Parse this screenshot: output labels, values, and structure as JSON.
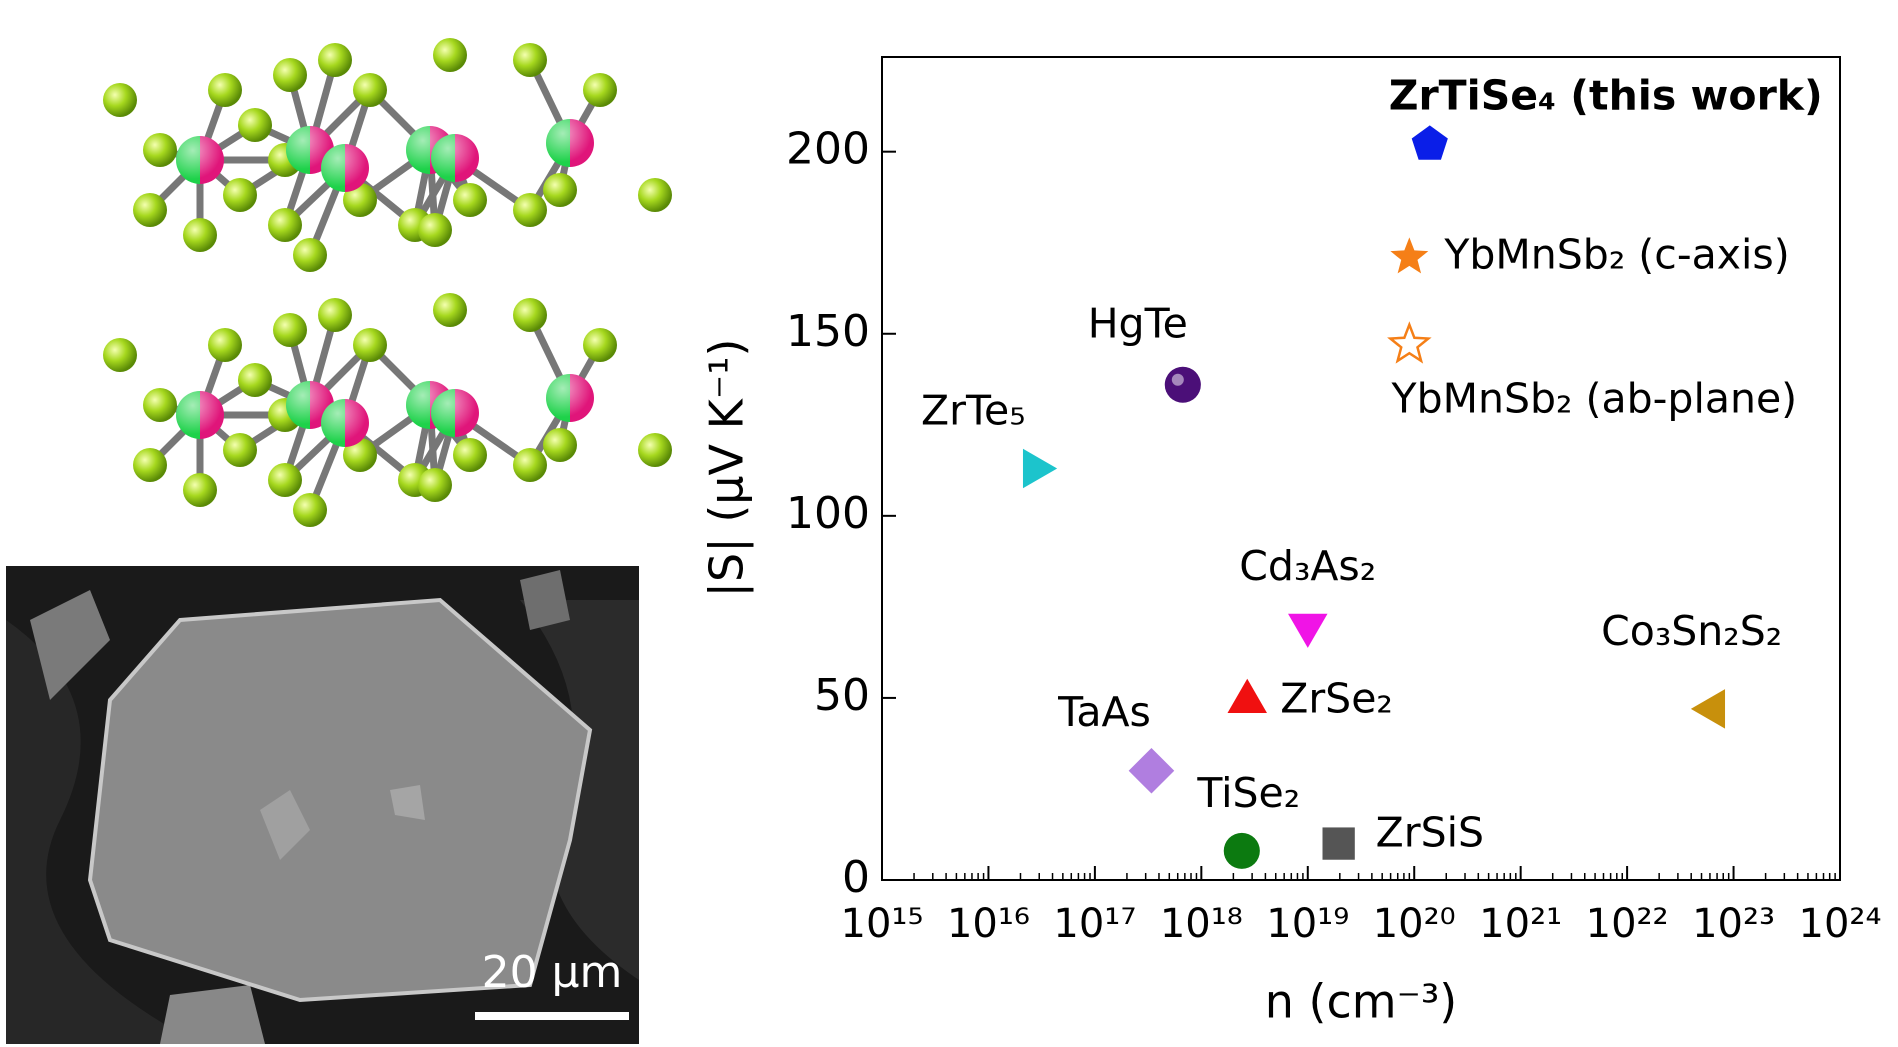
{
  "chart_data": {
    "type": "scatter",
    "xlabel": "n (cm⁻³)",
    "ylabel": "|S| (μV K⁻¹)",
    "xscale": "log",
    "xlim": [
      1000000000000000.0,
      1e+24
    ],
    "xticks": [
      {
        "value": 1000000000000000.0,
        "label": "10¹⁵"
      },
      {
        "value": 1e+16,
        "label": "10¹⁶"
      },
      {
        "value": 1e+17,
        "label": "10¹⁷"
      },
      {
        "value": 1e+18,
        "label": "10¹⁸"
      },
      {
        "value": 1e+19,
        "label": "10¹⁹"
      },
      {
        "value": 1e+20,
        "label": "10²⁰"
      },
      {
        "value": 1e+21,
        "label": "10²¹"
      },
      {
        "value": 1e+22,
        "label": "10²²"
      },
      {
        "value": 1e+23,
        "label": "10²³"
      },
      {
        "value": 1e+24,
        "label": "10²⁴"
      }
    ],
    "ylim": [
      0,
      226
    ],
    "yticks": [
      0,
      50,
      100,
      150,
      200
    ],
    "series": [
      {
        "name": "ZrTiSe₄ (this work)",
        "color": "#0a1ee8",
        "marker": "pentagon",
        "x": [
          1.4e+20
        ],
        "values": [
          202
        ]
      },
      {
        "name": "YbMnSb₂ (c-axis)",
        "color": "#f57f17",
        "marker": "star",
        "x": [
          9e+19
        ],
        "values": [
          171
        ]
      },
      {
        "name": "YbMnSb₂ (ab-plane)",
        "color": "#f57f17",
        "marker": "star-open",
        "x": [
          9e+19
        ],
        "values": [
          147
        ]
      },
      {
        "name": "HgTe",
        "color": "#4b0f78",
        "marker": "circle",
        "x": [
          6.7e+17
        ],
        "values": [
          136
        ]
      },
      {
        "name": "ZrTe₅",
        "color": "#1cc4cc",
        "marker": "triangle-right",
        "x": [
          2.7e+16
        ],
        "values": [
          113
        ]
      },
      {
        "name": "Cd₃As₂",
        "color": "#f014e6",
        "marker": "triangle-down",
        "x": [
          1e+19
        ],
        "values": [
          70
        ]
      },
      {
        "name": "Co₃Sn₂S₂",
        "color": "#c8900c",
        "marker": "triangle-left",
        "x": [
          6.5e+22
        ],
        "values": [
          47
        ]
      },
      {
        "name": "ZrSe₂",
        "color": "#f01010",
        "marker": "triangle-up",
        "x": [
          2.7e+18
        ],
        "values": [
          49
        ]
      },
      {
        "name": "TaAs",
        "color": "#b07ee0",
        "marker": "diamond",
        "x": [
          3.4e+17
        ],
        "values": [
          30
        ]
      },
      {
        "name": "TiSe₂",
        "color": "#0c7a10",
        "marker": "circle",
        "x": [
          2.4e+18
        ],
        "values": [
          8
        ]
      },
      {
        "name": "ZrSiS",
        "color": "#555555",
        "marker": "square",
        "x": [
          1.95e+19
        ],
        "values": [
          10
        ]
      }
    ]
  },
  "sem_image": {
    "scale_bar": "20 µm"
  }
}
